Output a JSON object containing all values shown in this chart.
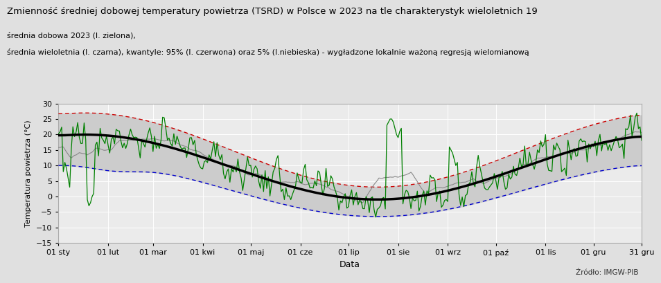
{
  "title": "Zmienność średniej dobowej temperatury powietrza (TSRD) w Polsce w 2023 na tle charakterystyk wieloletnich 19",
  "subtitle_line1": "średnia dobowa 2023 (l. zielona),",
  "subtitle_line2": "średnia wieloletnia (l. czarna), kwantyle: 95% (l. czerwona) oraz 5% (l.niebieska) - wygładzone lokalnie ważoną regresją wielomianową",
  "xlabel": "Data",
  "ylabel": "Temperatura powietrza (°C)",
  "source": "Źródło: IMGW-PIB",
  "ylim": [
    -15,
    30
  ],
  "yticks": [
    -15,
    -10,
    -5,
    0,
    5,
    10,
    15,
    20,
    25,
    30
  ],
  "xtick_labels": [
    "01 sty",
    "01 lut",
    "01 mar",
    "01 kwi",
    "01 maj",
    "01 cze",
    "01 lip",
    "01 sie",
    "01 wrz",
    "01 paź",
    "01 lis",
    "01 gru",
    "31 gru"
  ],
  "xtick_days": [
    1,
    32,
    60,
    91,
    121,
    152,
    182,
    213,
    244,
    274,
    305,
    335,
    365
  ],
  "bg_color": "#e0e0e0",
  "plot_bg_color": "#ebebeb",
  "mean_color": "#000000",
  "q95_color": "#cc0000",
  "q05_color": "#0000cc",
  "daily2023_color": "#008000",
  "smooth2023_color": "#000000",
  "fill_color": "#cccccc"
}
